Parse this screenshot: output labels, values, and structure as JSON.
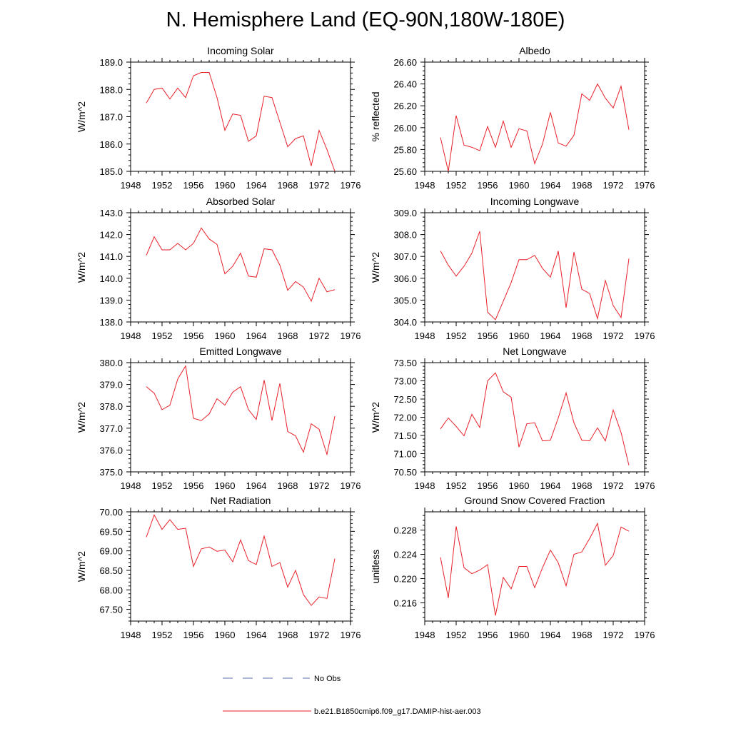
{
  "title": "N. Hemisphere Land (EQ-90N,180W-180E)",
  "colors": {
    "model_line": "#e8212a",
    "obs_line": "#5a6fb5",
    "axis": "#000000"
  },
  "legend": {
    "obs_label": "No Obs",
    "model_label": "b.e21.B1850cmip6.f09_g17.DAMIP-hist-aer.003"
  },
  "chart_data": [
    {
      "type": "line",
      "title": "Incoming Solar",
      "xlabel": "",
      "ylabel": "W/m^2",
      "xlim": [
        1948,
        1976
      ],
      "ylim": [
        185.0,
        189.0
      ],
      "xticks": [
        1948,
        1952,
        1956,
        1960,
        1964,
        1968,
        1972,
        1976
      ],
      "yticks": [
        "185.0",
        "186.0",
        "187.0",
        "188.0",
        "189.0"
      ],
      "grid": false,
      "x": [
        1950,
        1951,
        1952,
        1953,
        1954,
        1955,
        1956,
        1957,
        1958,
        1959,
        1960,
        1961,
        1962,
        1963,
        1964,
        1965,
        1966,
        1967,
        1968,
        1969,
        1970,
        1971,
        1972,
        1973,
        1974
      ],
      "series": [
        {
          "values": [
            187.5,
            188.0,
            188.05,
            187.65,
            188.05,
            187.7,
            188.5,
            188.62,
            188.62,
            187.7,
            186.5,
            187.1,
            187.05,
            186.1,
            186.3,
            187.75,
            187.7,
            186.8,
            185.9,
            186.2,
            186.3,
            185.2,
            186.5,
            185.8,
            185.0
          ]
        }
      ]
    },
    {
      "type": "line",
      "title": "Albedo",
      "xlabel": "",
      "ylabel": "% reflected",
      "xlim": [
        1948,
        1976
      ],
      "ylim": [
        25.6,
        26.6
      ],
      "xticks": [
        1948,
        1952,
        1956,
        1960,
        1964,
        1968,
        1972,
        1976
      ],
      "yticks": [
        "25.60",
        "25.80",
        "26.00",
        "26.20",
        "26.40",
        "26.60"
      ],
      "grid": false,
      "x": [
        1950,
        1951,
        1952,
        1953,
        1954,
        1955,
        1956,
        1957,
        1958,
        1959,
        1960,
        1961,
        1962,
        1963,
        1964,
        1965,
        1966,
        1967,
        1968,
        1969,
        1970,
        1971,
        1972,
        1973,
        1974
      ],
      "series": [
        {
          "values": [
            25.91,
            25.6,
            26.11,
            25.84,
            25.82,
            25.79,
            26.01,
            25.82,
            26.06,
            25.82,
            25.99,
            25.97,
            25.67,
            25.85,
            26.14,
            25.86,
            25.83,
            25.93,
            26.31,
            26.25,
            26.4,
            26.27,
            26.18,
            26.38,
            25.98
          ]
        }
      ]
    },
    {
      "type": "line",
      "title": "Absorbed Solar",
      "xlabel": "",
      "ylabel": "W/m^2",
      "xlim": [
        1948,
        1976
      ],
      "ylim": [
        138.0,
        143.0
      ],
      "xticks": [
        1948,
        1952,
        1956,
        1960,
        1964,
        1968,
        1972,
        1976
      ],
      "yticks": [
        "138.0",
        "139.0",
        "140.0",
        "141.0",
        "142.0",
        "143.0"
      ],
      "grid": false,
      "x": [
        1950,
        1951,
        1952,
        1953,
        1954,
        1955,
        1956,
        1957,
        1958,
        1959,
        1960,
        1961,
        1962,
        1963,
        1964,
        1965,
        1966,
        1967,
        1968,
        1969,
        1970,
        1971,
        1972,
        1973,
        1974
      ],
      "series": [
        {
          "values": [
            141.05,
            141.9,
            141.3,
            141.3,
            141.6,
            141.3,
            141.6,
            142.3,
            141.8,
            141.55,
            140.2,
            140.55,
            141.15,
            140.1,
            140.05,
            141.35,
            141.3,
            140.6,
            139.45,
            139.85,
            139.6,
            138.95,
            140.0,
            139.38,
            139.48
          ]
        }
      ]
    },
    {
      "type": "line",
      "title": "Incoming Longwave",
      "xlabel": "",
      "ylabel": "W/m^2",
      "xlim": [
        1948,
        1976
      ],
      "ylim": [
        304.0,
        309.0
      ],
      "xticks": [
        1948,
        1952,
        1956,
        1960,
        1964,
        1968,
        1972,
        1976
      ],
      "yticks": [
        "304.0",
        "305.0",
        "306.0",
        "307.0",
        "308.0",
        "309.0"
      ],
      "grid": false,
      "x": [
        1950,
        1951,
        1952,
        1953,
        1954,
        1955,
        1956,
        1957,
        1958,
        1959,
        1960,
        1961,
        1962,
        1963,
        1964,
        1965,
        1966,
        1967,
        1968,
        1969,
        1970,
        1971,
        1972,
        1973,
        1974
      ],
      "series": [
        {
          "values": [
            307.25,
            306.6,
            306.1,
            306.55,
            307.15,
            308.15,
            304.45,
            304.1,
            304.95,
            305.8,
            306.85,
            306.85,
            307.05,
            306.45,
            306.05,
            307.25,
            304.65,
            307.2,
            305.5,
            305.3,
            304.15,
            305.9,
            304.75,
            304.2,
            306.9
          ]
        }
      ]
    },
    {
      "type": "line",
      "title": "Emitted Longwave",
      "xlabel": "",
      "ylabel": "W/m^2",
      "xlim": [
        1948,
        1976
      ],
      "ylim": [
        375.0,
        380.0
      ],
      "xticks": [
        1948,
        1952,
        1956,
        1960,
        1964,
        1968,
        1972,
        1976
      ],
      "yticks": [
        "375.0",
        "376.0",
        "377.0",
        "378.0",
        "379.0",
        "380.0"
      ],
      "grid": false,
      "x": [
        1950,
        1951,
        1952,
        1953,
        1954,
        1955,
        1956,
        1957,
        1958,
        1959,
        1960,
        1961,
        1962,
        1963,
        1964,
        1965,
        1966,
        1967,
        1968,
        1969,
        1970,
        1971,
        1972,
        1973,
        1974
      ],
      "series": [
        {
          "values": [
            378.9,
            378.6,
            377.85,
            378.05,
            379.25,
            379.85,
            377.45,
            377.35,
            377.65,
            378.35,
            378.05,
            378.65,
            378.9,
            377.85,
            377.4,
            379.2,
            377.35,
            379.05,
            376.85,
            376.65,
            375.9,
            377.2,
            376.95,
            375.8,
            377.55
          ]
        }
      ]
    },
    {
      "type": "line",
      "title": "Net Longwave",
      "xlabel": "",
      "ylabel": "W/m^2",
      "xlim": [
        1948,
        1976
      ],
      "ylim": [
        70.5,
        73.5
      ],
      "xticks": [
        1948,
        1952,
        1956,
        1960,
        1964,
        1968,
        1972,
        1976
      ],
      "yticks": [
        "70.50",
        "71.00",
        "71.50",
        "72.00",
        "72.50",
        "73.00",
        "73.50"
      ],
      "grid": false,
      "x": [
        1950,
        1951,
        1952,
        1953,
        1954,
        1955,
        1956,
        1957,
        1958,
        1959,
        1960,
        1961,
        1962,
        1963,
        1964,
        1965,
        1966,
        1967,
        1968,
        1969,
        1970,
        1971,
        1972,
        1973,
        1974
      ],
      "series": [
        {
          "values": [
            71.68,
            71.98,
            71.75,
            71.49,
            72.08,
            71.72,
            73.0,
            73.22,
            72.7,
            72.55,
            71.18,
            71.82,
            71.85,
            71.35,
            71.37,
            71.98,
            72.67,
            71.85,
            71.37,
            71.35,
            71.71,
            71.35,
            72.2,
            71.58,
            70.68
          ]
        }
      ]
    },
    {
      "type": "line",
      "title": "Net Radiation",
      "xlabel": "",
      "ylabel": "W/m^2",
      "xlim": [
        1948,
        1976
      ],
      "ylim": [
        67.2,
        70.0
      ],
      "xticks": [
        1948,
        1952,
        1956,
        1960,
        1964,
        1968,
        1972,
        1976
      ],
      "yticks": [
        "67.50",
        "68.00",
        "68.50",
        "69.00",
        "69.50",
        "70.00"
      ],
      "grid": false,
      "x": [
        1950,
        1951,
        1952,
        1953,
        1954,
        1955,
        1956,
        1957,
        1958,
        1959,
        1960,
        1961,
        1962,
        1963,
        1964,
        1965,
        1966,
        1967,
        1968,
        1969,
        1970,
        1971,
        1972,
        1973,
        1974
      ],
      "series": [
        {
          "values": [
            69.35,
            69.92,
            69.55,
            69.8,
            69.55,
            69.58,
            68.6,
            69.05,
            69.1,
            68.99,
            69.02,
            68.72,
            69.28,
            68.75,
            68.65,
            69.38,
            68.6,
            68.7,
            68.07,
            68.5,
            67.88,
            67.6,
            67.82,
            67.78,
            68.8
          ]
        }
      ]
    },
    {
      "type": "line",
      "title": "Ground Snow Covered Fraction",
      "xlabel": "",
      "ylabel": "unitless",
      "xlim": [
        1948,
        1976
      ],
      "ylim": [
        0.213,
        0.231
      ],
      "xticks": [
        1948,
        1952,
        1956,
        1960,
        1964,
        1968,
        1972,
        1976
      ],
      "yticks": [
        "0.216",
        "0.220",
        "0.224",
        "0.228"
      ],
      "grid": false,
      "x": [
        1950,
        1951,
        1952,
        1953,
        1954,
        1955,
        1956,
        1957,
        1958,
        1959,
        1960,
        1961,
        1962,
        1963,
        1964,
        1965,
        1966,
        1967,
        1968,
        1969,
        1970,
        1971,
        1972,
        1973,
        1974
      ],
      "series": [
        {
          "values": [
            0.2235,
            0.2168,
            0.2286,
            0.2218,
            0.2208,
            0.2214,
            0.2223,
            0.2139,
            0.2202,
            0.2183,
            0.222,
            0.222,
            0.2185,
            0.2218,
            0.2247,
            0.2226,
            0.2188,
            0.224,
            0.2244,
            0.2266,
            0.2291,
            0.2222,
            0.2238,
            0.2285,
            0.2278
          ]
        }
      ]
    }
  ]
}
